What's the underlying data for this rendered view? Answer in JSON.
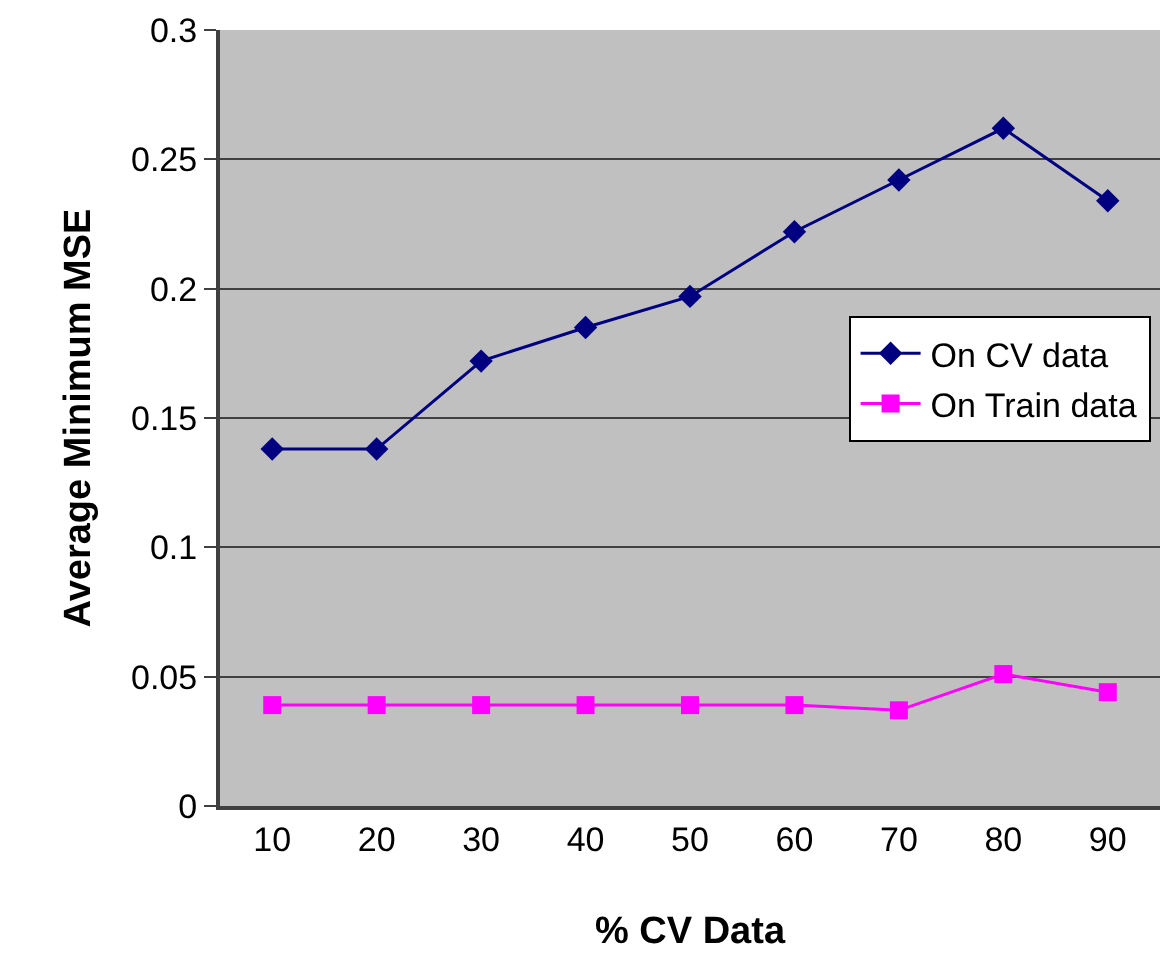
{
  "chart_data": {
    "type": "line",
    "xlabel": "% CV Data",
    "ylabel": "Average Minimum MSE",
    "categories": [
      "10",
      "20",
      "30",
      "40",
      "50",
      "60",
      "70",
      "80",
      "90"
    ],
    "series": [
      {
        "name": "On CV data",
        "color": "#000080",
        "marker": "diamond",
        "values": [
          0.138,
          0.138,
          0.172,
          0.185,
          0.197,
          0.222,
          0.242,
          0.262,
          0.234
        ]
      },
      {
        "name": "On Train data",
        "color": "#ff00ff",
        "marker": "square",
        "values": [
          0.039,
          0.039,
          0.039,
          0.039,
          0.039,
          0.039,
          0.037,
          0.051,
          0.044
        ]
      }
    ],
    "ylim": [
      0,
      0.3
    ],
    "yticks": [
      0,
      0.05,
      0.1,
      0.15,
      0.2,
      0.25,
      0.3
    ],
    "grid": "y",
    "legend": "right"
  }
}
